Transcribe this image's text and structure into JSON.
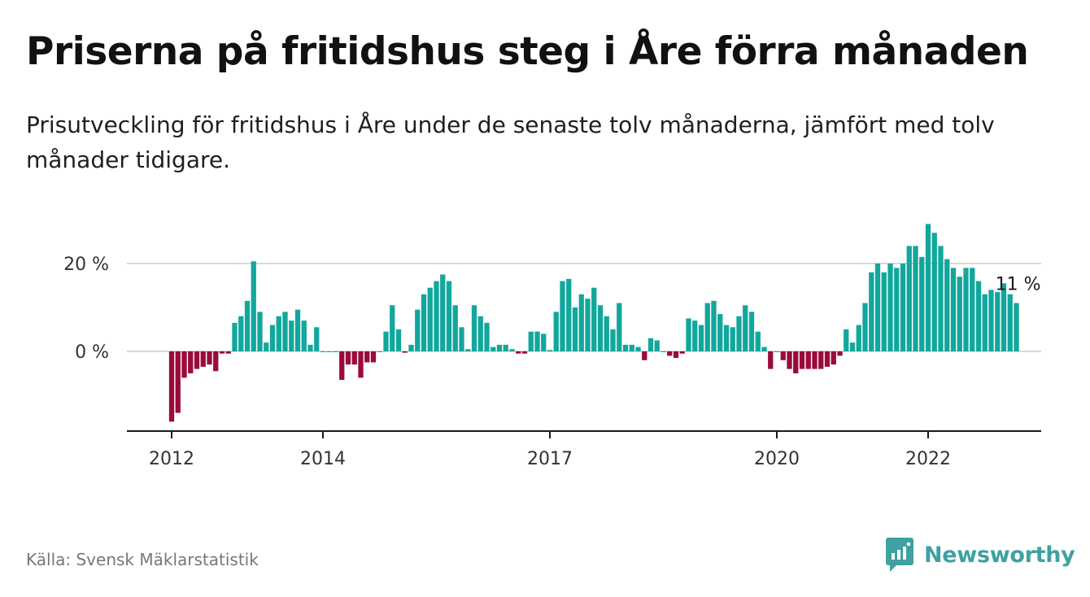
{
  "title": "Priserna på fritidshus steg i Åre förra månaden",
  "subtitle": "Prisutveckling för fritidshus i Åre under de senaste tolv månaderna, jämfört med tolv månader tidigare.",
  "source": "Källa: Svensk Mäklarstatistik",
  "brand": {
    "name": "Newsworthy",
    "color": "#3fa1a0"
  },
  "colors": {
    "positive": "#12a79c",
    "negative": "#9a0b3c",
    "grid": "#d9d9d9",
    "axis": "#1a1a1a"
  },
  "chart_data": {
    "type": "bar",
    "x_start": "2012-01",
    "x_end": "2023-02",
    "y_unit": " %",
    "ylim": [
      -16.5,
      29
    ],
    "y_ticks": [
      {
        "value": 0,
        "label": "0 %"
      },
      {
        "value": 20,
        "label": "20 %"
      }
    ],
    "x_ticks": [
      {
        "date": "2012-01",
        "label": "2012"
      },
      {
        "date": "2014-01",
        "label": "2014"
      },
      {
        "date": "2017-01",
        "label": "2017"
      },
      {
        "date": "2020-01",
        "label": "2020"
      },
      {
        "date": "2022-01",
        "label": "2022"
      }
    ],
    "last_value_label": "11 %",
    "grid": true,
    "legend": "none",
    "values": [
      -16,
      -14,
      -6,
      -5,
      -4,
      -3.5,
      -3,
      -4.5,
      -0.5,
      -0.5,
      6.5,
      8,
      11.5,
      20.5,
      9,
      2,
      6,
      8,
      9,
      7,
      9.5,
      7,
      1.5,
      5.5,
      0,
      0,
      0,
      -6.5,
      -3,
      -3,
      -6,
      -2.5,
      -2.5,
      0,
      4.5,
      10.5,
      5,
      -0.3,
      1.5,
      9.5,
      13,
      14.5,
      16,
      17.5,
      16,
      10.5,
      5.5,
      0.5,
      10.5,
      8,
      6.5,
      1,
      1.5,
      1.5,
      0.5,
      -0.5,
      -0.5,
      4.5,
      4.5,
      4,
      0.3,
      9,
      16,
      16.5,
      10,
      13,
      12,
      14.5,
      10.5,
      8,
      5,
      11,
      1.5,
      1.5,
      1,
      -2,
      3,
      2.5,
      0,
      -1,
      -1.5,
      -0.5,
      7.5,
      7,
      6,
      11,
      11.5,
      8.5,
      6,
      5.5,
      8,
      10.5,
      9,
      4.5,
      1,
      -4,
      0,
      -2,
      -4,
      -5,
      -4,
      -4,
      -4,
      -4,
      -3.5,
      -3,
      -1,
      5,
      2,
      6,
      11,
      18,
      20,
      18,
      20,
      19,
      20,
      24,
      24,
      21.5,
      29,
      27,
      24,
      21,
      19,
      17,
      19,
      19,
      16,
      13,
      14,
      13.5,
      15.5,
      13,
      11
    ]
  }
}
